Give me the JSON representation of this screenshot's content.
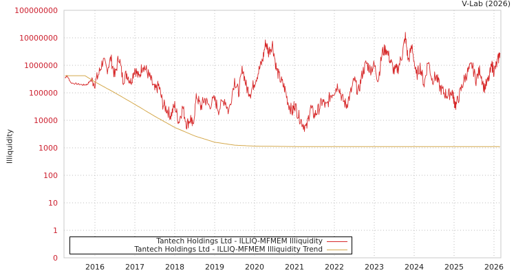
{
  "chart_data": {
    "type": "line",
    "title": "",
    "credit": "V-Lab (2026)",
    "xlabel": "",
    "ylabel": "Illiquidity",
    "yscale": "log",
    "y_ticks": [
      "100000000",
      "10000000",
      "1000000",
      "100000",
      "10000",
      "1000",
      "100",
      "10",
      "1",
      "0"
    ],
    "x_ticks": [
      "2016",
      "2017",
      "2018",
      "2019",
      "2020",
      "2021",
      "2022",
      "2023",
      "2024",
      "2025",
      "2026"
    ],
    "x_range": [
      2015.25,
      2026.15
    ],
    "grid": true,
    "legend_position": "bottom-left inside",
    "series": [
      {
        "name": "Tantech Holdings Ltd - ILLIQ-MFMEM Illiquidity",
        "color": "#d62728",
        "points": [
          [
            2015.25,
            350000
          ],
          [
            2015.3,
            420000
          ],
          [
            2015.4,
            230000
          ],
          [
            2015.55,
            210000
          ],
          [
            2015.7,
            195000
          ],
          [
            2015.8,
            200000
          ],
          [
            2015.9,
            290000
          ],
          [
            2016.0,
            230000
          ],
          [
            2016.1,
            500000
          ],
          [
            2016.2,
            1500000
          ],
          [
            2016.3,
            700000
          ],
          [
            2016.4,
            1800000
          ],
          [
            2016.5,
            400000
          ],
          [
            2016.6,
            2200000
          ],
          [
            2016.7,
            300000
          ],
          [
            2016.8,
            500000
          ],
          [
            2016.9,
            250000
          ],
          [
            2017.0,
            800000
          ],
          [
            2017.1,
            350000
          ],
          [
            2017.2,
            1100000
          ],
          [
            2017.3,
            600000
          ],
          [
            2017.4,
            300000
          ],
          [
            2017.5,
            120000
          ],
          [
            2017.6,
            180000
          ],
          [
            2017.7,
            40000
          ],
          [
            2017.8,
            25000
          ],
          [
            2017.9,
            15000
          ],
          [
            2018.0,
            35000
          ],
          [
            2018.1,
            9000
          ],
          [
            2018.2,
            30000
          ],
          [
            2018.3,
            7000
          ],
          [
            2018.4,
            12000
          ],
          [
            2018.45,
            6000
          ],
          [
            2018.55,
            80000
          ],
          [
            2018.65,
            30000
          ],
          [
            2018.75,
            60000
          ],
          [
            2018.85,
            35000
          ],
          [
            2019.0,
            55000
          ],
          [
            2019.1,
            25000
          ],
          [
            2019.25,
            60000
          ],
          [
            2019.35,
            20000
          ],
          [
            2019.5,
            300000
          ],
          [
            2019.6,
            100000
          ],
          [
            2019.7,
            800000
          ],
          [
            2019.8,
            150000
          ],
          [
            2019.9,
            100000
          ],
          [
            2020.0,
            250000
          ],
          [
            2020.1,
            600000
          ],
          [
            2020.2,
            1500000
          ],
          [
            2020.28,
            7000000
          ],
          [
            2020.35,
            3000000
          ],
          [
            2020.45,
            6000000
          ],
          [
            2020.55,
            700000
          ],
          [
            2020.65,
            300000
          ],
          [
            2020.75,
            150000
          ],
          [
            2020.85,
            40000
          ],
          [
            2020.95,
            20000
          ],
          [
            2021.0,
            40000
          ],
          [
            2021.1,
            15000
          ],
          [
            2021.2,
            8000
          ],
          [
            2021.3,
            5000
          ],
          [
            2021.4,
            30000
          ],
          [
            2021.5,
            15000
          ],
          [
            2021.6,
            25000
          ],
          [
            2021.7,
            50000
          ],
          [
            2021.8,
            30000
          ],
          [
            2021.9,
            80000
          ],
          [
            2022.0,
            120000
          ],
          [
            2022.1,
            200000
          ],
          [
            2022.2,
            60000
          ],
          [
            2022.3,
            35000
          ],
          [
            2022.4,
            90000
          ],
          [
            2022.5,
            300000
          ],
          [
            2022.6,
            100000
          ],
          [
            2022.7,
            500000
          ],
          [
            2022.8,
            1200000
          ],
          [
            2022.9,
            700000
          ],
          [
            2023.0,
            1000000
          ],
          [
            2023.1,
            300000
          ],
          [
            2023.2,
            3000000
          ],
          [
            2023.3,
            4000000
          ],
          [
            2023.4,
            1500000
          ],
          [
            2023.5,
            600000
          ],
          [
            2023.6,
            800000
          ],
          [
            2023.7,
            2500000
          ],
          [
            2023.78,
            11000000
          ],
          [
            2023.85,
            1500000
          ],
          [
            2023.95,
            5000000
          ],
          [
            2024.05,
            400000
          ],
          [
            2024.15,
            900000
          ],
          [
            2024.25,
            200000
          ],
          [
            2024.35,
            1500000
          ],
          [
            2024.45,
            300000
          ],
          [
            2024.55,
            400000
          ],
          [
            2024.65,
            150000
          ],
          [
            2024.75,
            100000
          ],
          [
            2024.85,
            80000
          ],
          [
            2024.95,
            120000
          ],
          [
            2025.0,
            50000
          ],
          [
            2025.05,
            35000
          ],
          [
            2025.15,
            100000
          ],
          [
            2025.25,
            300000
          ],
          [
            2025.35,
            600000
          ],
          [
            2025.45,
            1000000
          ],
          [
            2025.55,
            300000
          ],
          [
            2025.65,
            700000
          ],
          [
            2025.75,
            150000
          ],
          [
            2025.85,
            250000
          ],
          [
            2025.95,
            1000000
          ],
          [
            2026.0,
            600000
          ],
          [
            2026.08,
            1200000
          ],
          [
            2026.15,
            2800000
          ]
        ]
      },
      {
        "name": "Tantech Holdings Ltd - ILLIQ-MFMEM Illiquidity Trend",
        "color": "#d4a84b",
        "points": [
          [
            2015.25,
            420000
          ],
          [
            2015.75,
            420000
          ],
          [
            2016.0,
            250000
          ],
          [
            2016.5,
            100000
          ],
          [
            2017.0,
            38000
          ],
          [
            2017.5,
            14000
          ],
          [
            2018.0,
            5500
          ],
          [
            2018.5,
            2700
          ],
          [
            2019.0,
            1600
          ],
          [
            2019.5,
            1250
          ],
          [
            2020.0,
            1150
          ],
          [
            2021.0,
            1110
          ],
          [
            2022.0,
            1100
          ],
          [
            2023.0,
            1100
          ],
          [
            2024.0,
            1100
          ],
          [
            2025.0,
            1100
          ],
          [
            2026.15,
            1100
          ]
        ]
      }
    ]
  }
}
